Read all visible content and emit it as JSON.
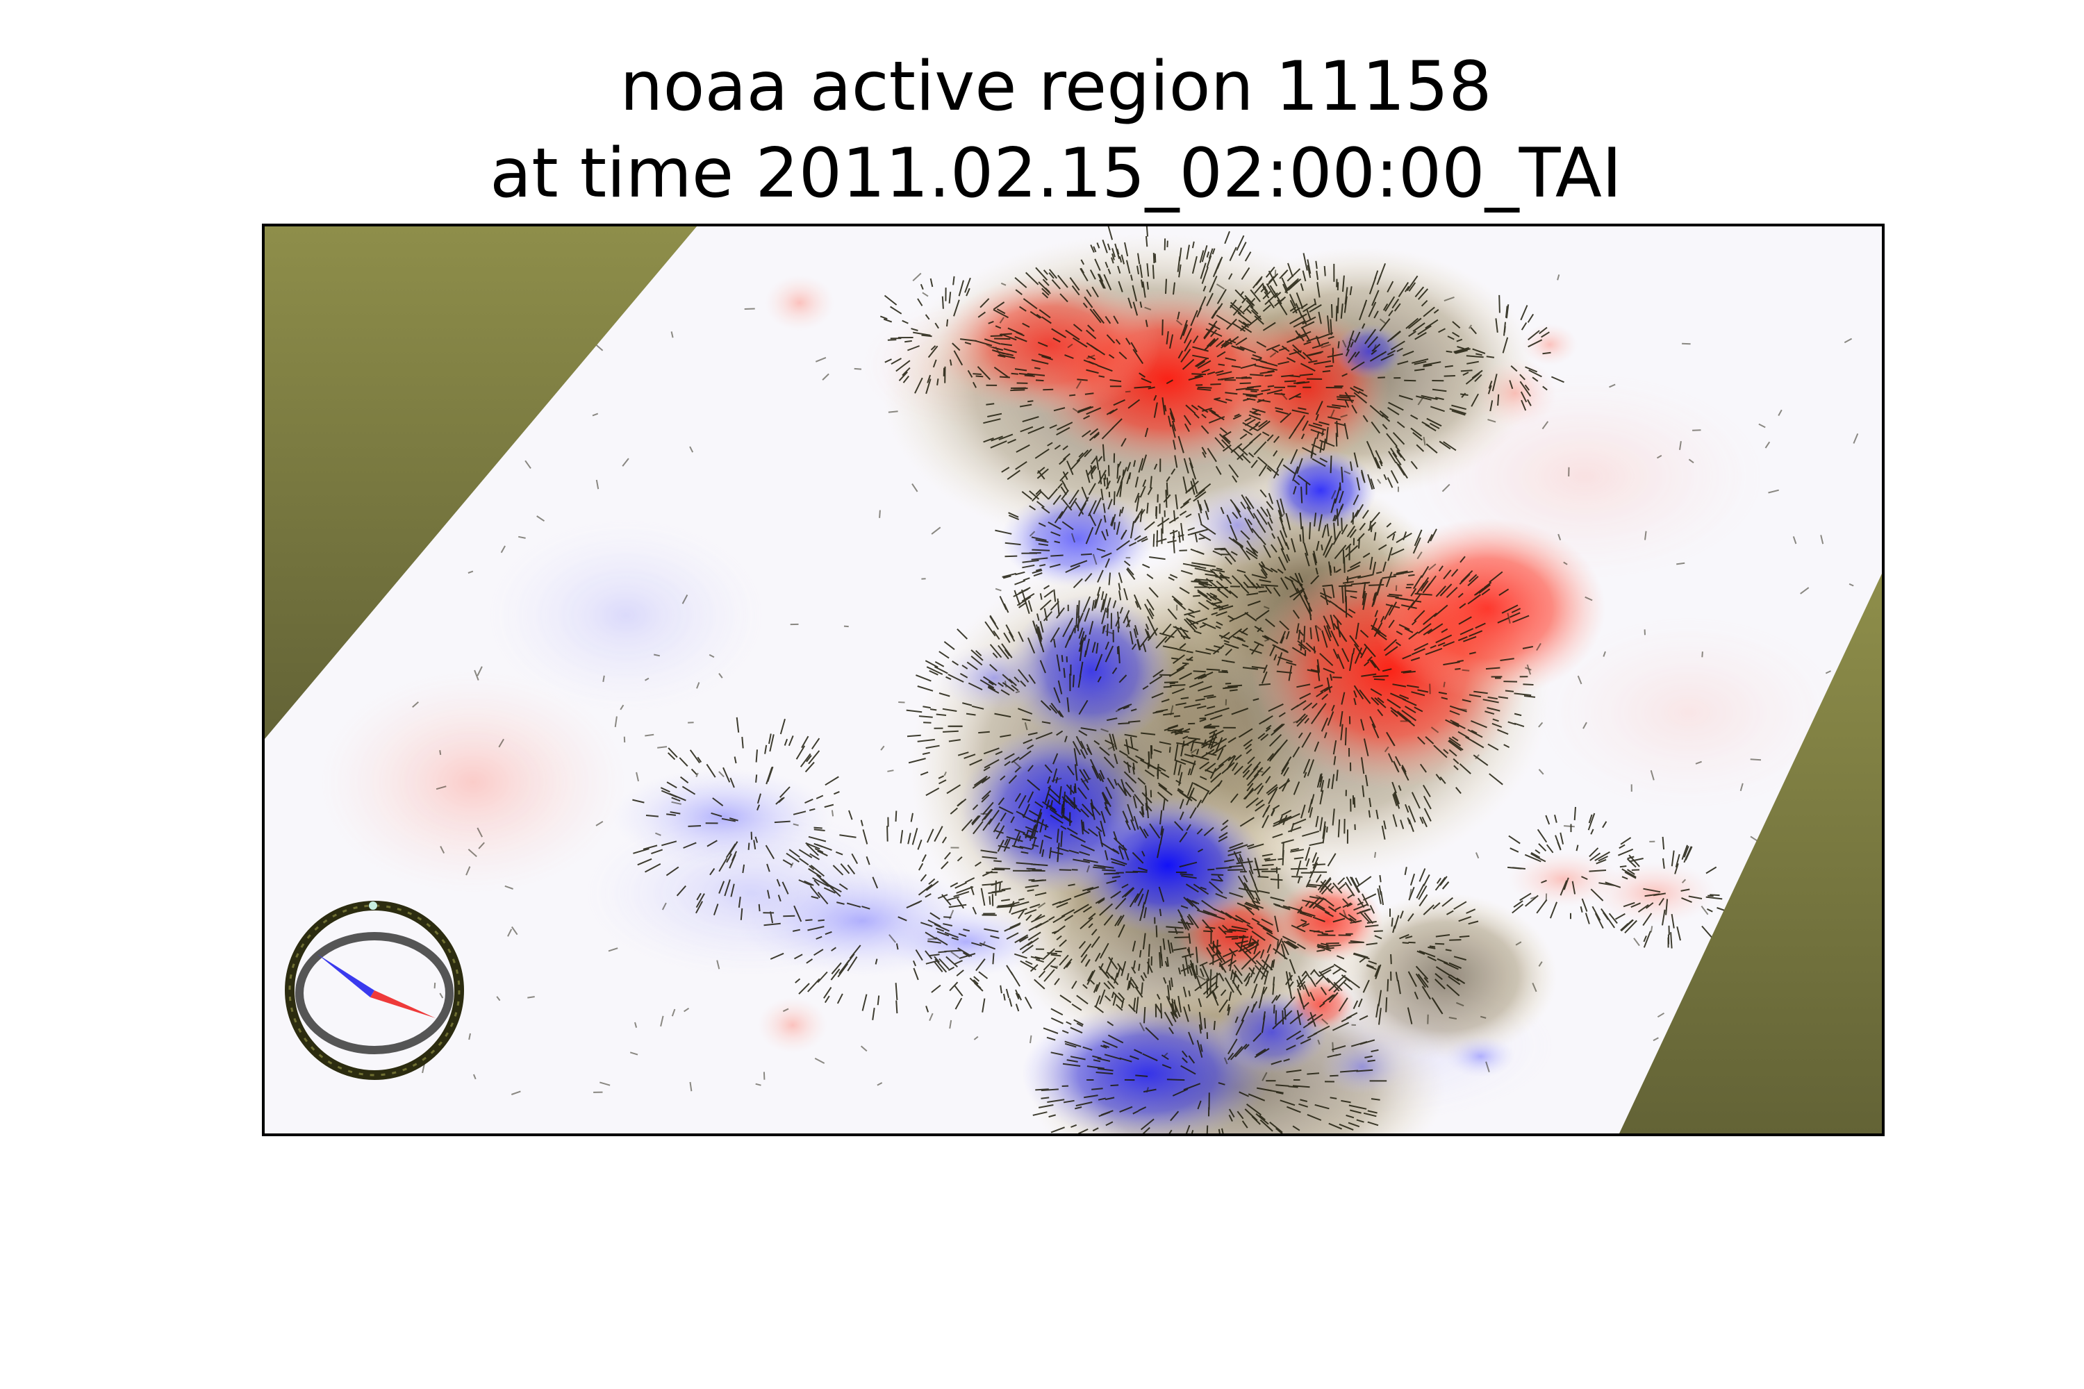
{
  "title": {
    "line1": "noaa active region 11158",
    "line2": "at time 2011.02.15_02:00:00_TAI"
  },
  "image": {
    "description_icon": "solar-magnetogram-image",
    "colors": {
      "positive_polarity": "#ff2a1a",
      "negative_polarity": "#1a1aff",
      "off_disk_mask": "#7a7a3c",
      "vector_lines": "#1a1a08",
      "vector_highlight": "#e8d49a"
    }
  },
  "compass": {
    "icon": "orientation-compass-icon"
  }
}
